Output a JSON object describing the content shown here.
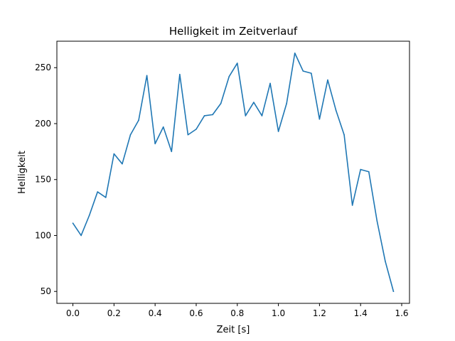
{
  "chart_data": {
    "type": "line",
    "title": "Helligkeit im Zeitverlauf",
    "xlabel": "Zeit [s]",
    "ylabel": "Helligkeit",
    "xlim": [
      -0.078,
      1.638
    ],
    "ylim": [
      39.35,
      273.65
    ],
    "xticks": [
      0.0,
      0.2,
      0.4,
      0.6,
      0.8,
      1.0,
      1.2,
      1.4,
      1.6
    ],
    "xtick_labels": [
      "0.0",
      "0.2",
      "0.4",
      "0.6",
      "0.8",
      "1.0",
      "1.2",
      "1.4",
      "1.6"
    ],
    "yticks": [
      50,
      100,
      150,
      200,
      250
    ],
    "ytick_labels": [
      "50",
      "100",
      "150",
      "200",
      "250"
    ],
    "grid": false,
    "series": [
      {
        "color": "#1f77b4",
        "x": [
          0.0,
          0.04,
          0.08,
          0.12,
          0.16,
          0.2,
          0.24,
          0.28,
          0.32,
          0.36,
          0.4,
          0.44,
          0.48,
          0.52,
          0.56,
          0.6,
          0.64,
          0.68,
          0.72,
          0.76,
          0.8,
          0.84,
          0.88,
          0.92,
          0.96,
          1.0,
          1.04,
          1.08,
          1.12,
          1.16,
          1.2,
          1.24,
          1.28,
          1.32,
          1.36,
          1.4,
          1.44,
          1.48,
          1.52,
          1.56
        ],
        "y": [
          111,
          100,
          118,
          139,
          134,
          173,
          164,
          190,
          203,
          243,
          182,
          197,
          175,
          244,
          190,
          195,
          207,
          208,
          218,
          242,
          254,
          207,
          219,
          207,
          236,
          193,
          218,
          263,
          247,
          245,
          204,
          239,
          212,
          190,
          127,
          159,
          157,
          113,
          77,
          50
        ]
      }
    ]
  }
}
